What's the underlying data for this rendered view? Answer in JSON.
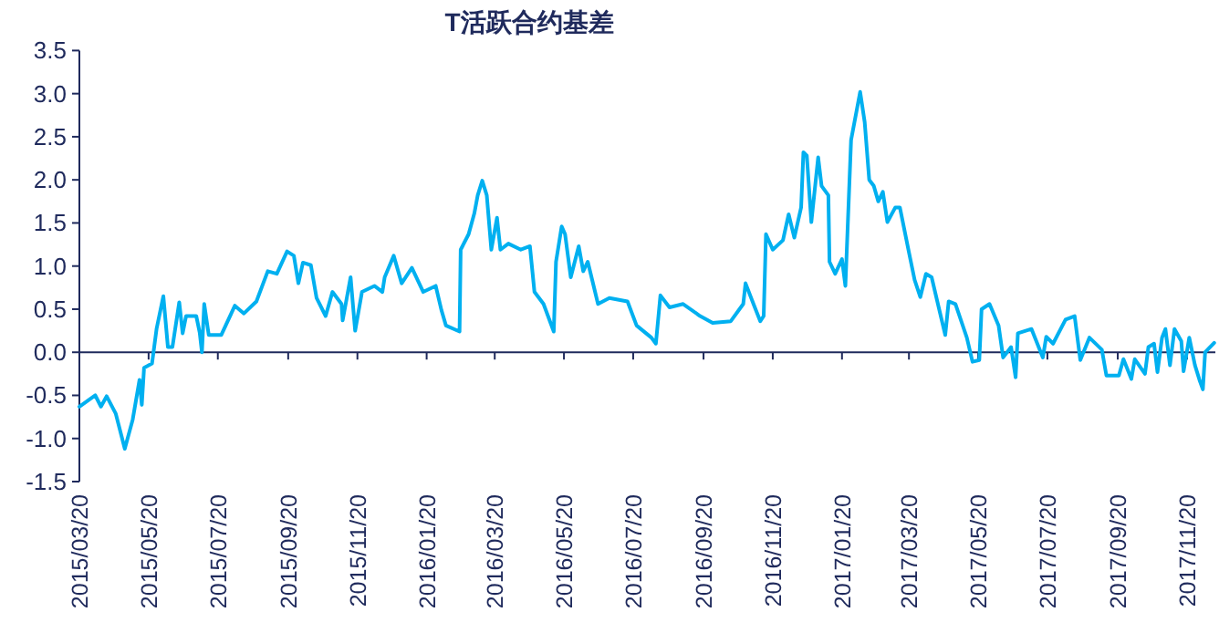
{
  "chart_data": {
    "type": "line",
    "title": "T活跃合约基差",
    "x": [
      "2015-03-20",
      "2015-04-03",
      "2015-04-08",
      "2015-04-13",
      "2015-04-21",
      "2015-04-29",
      "2015-05-06",
      "2015-05-12",
      "2015-05-14",
      "2015-05-16",
      "2015-05-23",
      "2015-05-27",
      "2015-06-02",
      "2015-06-06",
      "2015-06-10",
      "2015-06-16",
      "2015-06-19",
      "2015-06-22",
      "2015-07-01",
      "2015-07-04",
      "2015-07-06",
      "2015-07-08",
      "2015-07-12",
      "2015-07-23",
      "2015-08-04",
      "2015-08-12",
      "2015-08-23",
      "2015-09-02",
      "2015-09-10",
      "2015-09-19",
      "2015-09-25",
      "2015-09-29",
      "2015-10-03",
      "2015-10-10",
      "2015-10-15",
      "2015-10-23",
      "2015-10-29",
      "2015-11-06",
      "2015-11-07",
      "2015-11-14",
      "2015-11-18",
      "2015-11-24",
      "2015-12-05",
      "2015-12-12",
      "2015-12-14",
      "2015-12-22",
      "2015-12-29",
      "2016-01-07",
      "2016-01-17",
      "2016-01-28",
      "2016-02-02",
      "2016-02-06",
      "2016-02-18",
      "2016-02-19",
      "2016-02-26",
      "2016-03-02",
      "2016-03-05",
      "2016-03-09",
      "2016-03-13",
      "2016-03-17",
      "2016-03-22",
      "2016-03-25",
      "2016-04-01",
      "2016-04-12",
      "2016-04-20",
      "2016-04-24",
      "2016-05-02",
      "2016-05-11",
      "2016-05-13",
      "2016-05-18",
      "2016-05-21",
      "2016-05-26",
      "2016-06-02",
      "2016-06-06",
      "2016-06-10",
      "2016-06-19",
      "2016-06-29",
      "2016-07-15",
      "2016-07-23",
      "2016-08-05",
      "2016-08-09",
      "2016-08-13",
      "2016-08-21",
      "2016-09-02",
      "2016-09-17",
      "2016-09-28",
      "2016-10-14",
      "2016-10-25",
      "2016-10-27",
      "2016-11-03",
      "2016-11-09",
      "2016-11-12",
      "2016-11-14",
      "2016-11-20",
      "2016-11-29",
      "2016-12-04",
      "2016-12-09",
      "2016-12-15",
      "2016-12-17",
      "2016-12-20",
      "2016-12-24",
      "2016-12-30",
      "2017-01-02",
      "2017-01-08",
      "2017-01-09",
      "2017-01-14",
      "2017-01-20",
      "2017-01-23",
      "2017-01-28",
      "2017-02-05",
      "2017-02-09",
      "2017-02-13",
      "2017-02-17",
      "2017-02-21",
      "2017-02-25",
      "2017-03-01",
      "2017-03-08",
      "2017-03-12",
      "2017-03-20",
      "2017-03-25",
      "2017-03-30",
      "2017-04-04",
      "2017-04-09",
      "2017-04-14",
      "2017-04-21",
      "2017-04-24",
      "2017-04-30",
      "2017-05-10",
      "2017-05-15",
      "2017-05-21",
      "2017-05-23",
      "2017-05-30",
      "2017-06-07",
      "2017-06-11",
      "2017-06-18",
      "2017-06-22",
      "2017-06-24",
      "2017-07-06",
      "2017-07-16",
      "2017-07-19",
      "2017-07-25",
      "2017-08-05",
      "2017-08-13",
      "2017-08-18",
      "2017-08-26",
      "2017-09-06",
      "2017-09-10",
      "2017-09-21",
      "2017-09-25",
      "2017-10-02",
      "2017-10-05",
      "2017-10-14",
      "2017-10-17",
      "2017-10-22",
      "2017-10-25",
      "2017-10-29",
      "2017-11-01",
      "2017-11-05",
      "2017-11-09",
      "2017-11-15",
      "2017-11-17",
      "2017-11-22",
      "2017-11-27",
      "2017-12-01",
      "2017-12-04",
      "2017-12-06",
      "2017-12-14"
    ],
    "series": [
      {
        "color": "#00b0f0",
        "values": [
          -0.63,
          -0.5,
          -0.63,
          -0.51,
          -0.71,
          -1.12,
          -0.78,
          -0.32,
          -0.61,
          -0.18,
          -0.13,
          0.27,
          0.65,
          0.06,
          0.06,
          0.58,
          0.22,
          0.42,
          0.42,
          0.23,
          0.0,
          0.56,
          0.2,
          0.2,
          0.54,
          0.45,
          0.59,
          0.94,
          0.91,
          1.17,
          1.12,
          0.8,
          1.04,
          1.01,
          0.63,
          0.42,
          0.7,
          0.56,
          0.37,
          0.87,
          0.25,
          0.7,
          0.77,
          0.7,
          0.87,
          1.12,
          0.8,
          0.98,
          0.7,
          0.77,
          0.49,
          0.31,
          0.24,
          1.19,
          1.37,
          1.61,
          1.82,
          1.99,
          1.82,
          1.19,
          1.56,
          1.19,
          1.26,
          1.19,
          1.23,
          0.7,
          0.56,
          0.24,
          1.05,
          1.46,
          1.37,
          0.87,
          1.23,
          0.94,
          1.05,
          0.56,
          0.63,
          0.59,
          0.31,
          0.17,
          0.1,
          0.66,
          0.52,
          0.56,
          0.42,
          0.34,
          0.36,
          0.56,
          0.8,
          0.56,
          0.36,
          0.42,
          1.37,
          1.19,
          1.3,
          1.6,
          1.33,
          1.68,
          2.32,
          2.28,
          1.51,
          2.26,
          1.93,
          1.82,
          1.05,
          0.91,
          1.08,
          0.77,
          2.46,
          3.02,
          2.67,
          2.0,
          1.93,
          1.75,
          1.86,
          1.51,
          1.68,
          1.68,
          1.16,
          0.84,
          0.64,
          0.91,
          0.87,
          0.59,
          0.2,
          0.59,
          0.56,
          0.17,
          -0.11,
          -0.09,
          0.5,
          0.56,
          0.31,
          -0.06,
          0.06,
          -0.29,
          0.22,
          0.27,
          -0.06,
          0.18,
          0.1,
          0.38,
          0.42,
          -0.09,
          0.17,
          0.03,
          -0.27,
          -0.27,
          -0.08,
          -0.31,
          -0.08,
          -0.25,
          0.06,
          0.1,
          -0.23,
          0.17,
          0.27,
          -0.15,
          0.27,
          0.13,
          -0.22,
          0.17,
          -0.15,
          -0.32,
          -0.43,
          0.0,
          0.11
        ]
      }
    ],
    "xlim": [
      "2015-03-20",
      "2017-12-15"
    ],
    "xticks": [
      {
        "value": "2015-03-20",
        "label": "2015/03/20"
      },
      {
        "value": "2015-05-20",
        "label": "2015/05/20"
      },
      {
        "value": "2015-07-20",
        "label": "2015/07/20"
      },
      {
        "value": "2015-09-20",
        "label": "2015/09/20"
      },
      {
        "value": "2015-11-20",
        "label": "2015/11/20"
      },
      {
        "value": "2016-01-20",
        "label": "2016/01/20"
      },
      {
        "value": "2016-03-20",
        "label": "2016/03/20"
      },
      {
        "value": "2016-05-20",
        "label": "2016/05/20"
      },
      {
        "value": "2016-07-20",
        "label": "2016/07/20"
      },
      {
        "value": "2016-09-20",
        "label": "2016/09/20"
      },
      {
        "value": "2016-11-20",
        "label": "2016/11/20"
      },
      {
        "value": "2017-01-20",
        "label": "2017/01/20"
      },
      {
        "value": "2017-03-20",
        "label": "2017/03/20"
      },
      {
        "value": "2017-05-20",
        "label": "2017/05/20"
      },
      {
        "value": "2017-07-20",
        "label": "2017/07/20"
      },
      {
        "value": "2017-09-20",
        "label": "2017/09/20"
      },
      {
        "value": "2017-11-20",
        "label": "2017/11/20"
      }
    ],
    "ylim": [
      -1.5,
      3.5
    ],
    "yticks": [
      -1.5,
      {
        "value": -1,
        "label": "-1.0"
      },
      -0.5,
      {
        "value": 0,
        "label": "0.0"
      },
      0.5,
      {
        "value": 1,
        "label": "1.0"
      },
      1.5,
      {
        "value": 2,
        "label": "2.0"
      },
      2.5,
      {
        "value": 3,
        "label": "3.0"
      },
      3.5
    ],
    "grid": false,
    "marker": "none",
    "line_style": "solid"
  }
}
